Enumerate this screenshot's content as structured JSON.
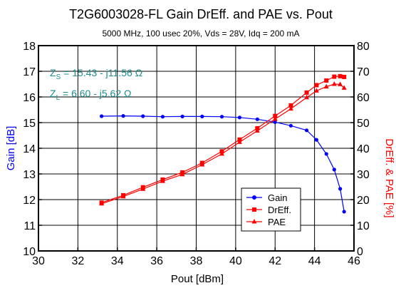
{
  "chart_data": {
    "type": "line",
    "title": "T2G6003028-FL Gain DrEff. and PAE vs. Pout",
    "subtitle": "5000 MHz, 100 usec 20%, Vds = 28V, Idq = 200 mA",
    "xlabel": "Pout [dBm]",
    "ylabel_left": "Gain [dB]",
    "ylabel_right": "DrEff. & PAE [%]",
    "xlim": [
      30,
      46
    ],
    "ylim_left": [
      10,
      18
    ],
    "ylim_right": [
      0,
      80
    ],
    "x_ticks": [
      30,
      32,
      34,
      36,
      38,
      40,
      42,
      44,
      46
    ],
    "y_ticks_left": [
      10,
      11,
      12,
      13,
      14,
      15,
      16,
      17,
      18
    ],
    "y_ticks_right": [
      0,
      10,
      20,
      30,
      40,
      50,
      60,
      70,
      80
    ],
    "grid": true,
    "legend_position": "bottom-right",
    "annotations": {
      "zs": {
        "prefix": "Z",
        "sub": "S",
        "text": " = 15.43 - j11.56 Ω"
      },
      "zl": {
        "prefix": "Z",
        "sub": "L",
        "text": " =  6.60 - j5.62  Ω"
      }
    },
    "colors": {
      "gain": "#0000ff",
      "dreff": "#ff0000",
      "pae": "#ff0000",
      "annotation": "#1f8c8c"
    },
    "series": [
      {
        "name": "Gain",
        "axis": "left",
        "marker": "circle",
        "x": [
          33.2,
          34.3,
          35.3,
          36.3,
          37.3,
          38.3,
          39.3,
          40.2,
          41.1,
          42.0,
          42.8,
          43.6,
          44.1,
          44.6,
          45.0,
          45.3,
          45.5
        ],
        "values": [
          15.25,
          15.26,
          15.25,
          15.23,
          15.24,
          15.24,
          15.23,
          15.2,
          15.13,
          15.02,
          14.88,
          14.7,
          14.33,
          13.78,
          13.17,
          12.42,
          11.53
        ]
      },
      {
        "name": "DrEff.",
        "axis": "right",
        "marker": "square",
        "x": [
          33.2,
          34.3,
          35.3,
          36.3,
          37.3,
          38.3,
          39.3,
          40.2,
          41.1,
          42.0,
          42.8,
          43.6,
          44.1,
          44.6,
          45.0,
          45.3,
          45.5
        ],
        "values": [
          18.8,
          21.7,
          24.8,
          27.8,
          30.6,
          34.3,
          38.8,
          43.4,
          47.8,
          52.6,
          56.7,
          61.7,
          64.6,
          66.4,
          67.9,
          68.1,
          67.8
        ]
      },
      {
        "name": "PAE",
        "axis": "right",
        "marker": "triangle",
        "x": [
          33.2,
          34.3,
          35.3,
          36.3,
          37.3,
          38.3,
          39.3,
          40.2,
          41.1,
          42.0,
          42.8,
          43.6,
          44.1,
          44.6,
          45.0,
          45.3,
          45.5
        ],
        "values": [
          18.4,
          21.2,
          24.1,
          27.2,
          29.8,
          33.6,
          37.8,
          42.4,
          46.8,
          51.4,
          55.4,
          59.8,
          62.4,
          64.0,
          65.0,
          64.9,
          63.5
        ]
      }
    ]
  }
}
